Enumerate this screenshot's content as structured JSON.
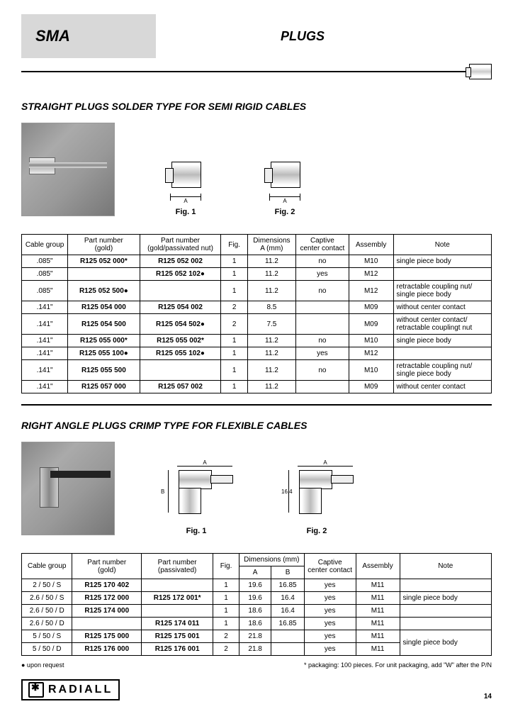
{
  "header": {
    "category": "SMA",
    "page_title": "PLUGS"
  },
  "section1": {
    "title": "STRAIGHT PLUGS SOLDER TYPE FOR SEMI RIGID CABLES",
    "fig1_label": "Fig. 1",
    "fig2_label": "Fig. 2",
    "dim_a": "A",
    "headers": {
      "cable_group": "Cable group",
      "pn_gold": "Part number\n(gold)",
      "pn_passivated": "Part number\n(gold/passivated nut)",
      "fig": "Fig.",
      "dim_a": "Dimensions\nA (mm)",
      "captive": "Captive\ncenter contact",
      "assembly": "Assembly",
      "note": "Note"
    },
    "rows": [
      {
        "cg": ".085\"",
        "pn1": "R125 052 000*",
        "pn2": "R125 052 002",
        "fig": "1",
        "a": "11.2",
        "cap": "no",
        "asm": "M10",
        "note": "single piece body"
      },
      {
        "cg": ".085\"",
        "pn1": "",
        "pn2": "R125 052 102●",
        "fig": "1",
        "a": "11.2",
        "cap": "yes",
        "asm": "M12",
        "note": ""
      },
      {
        "cg": ".085\"",
        "pn1": "R125 052 500●",
        "pn2": "",
        "fig": "1",
        "a": "11.2",
        "cap": "no",
        "asm": "M12",
        "note": "retractable coupling nut/\nsingle piece body"
      },
      {
        "cg": ".141\"",
        "pn1": "R125 054 000",
        "pn2": "R125 054 002",
        "fig": "2",
        "a": "8.5",
        "cap": "",
        "asm": "M09",
        "note": "without center contact"
      },
      {
        "cg": ".141\"",
        "pn1": "R125 054 500",
        "pn2": "R125 054 502●",
        "fig": "2",
        "a": "7.5",
        "cap": "",
        "asm": "M09",
        "note": "without center contact/\nretractable couplingt nut"
      },
      {
        "cg": ".141\"",
        "pn1": "R125 055 000*",
        "pn2": "R125 055 002*",
        "fig": "1",
        "a": "11.2",
        "cap": "no",
        "asm": "M10",
        "note": "single piece body"
      },
      {
        "cg": ".141\"",
        "pn1": "R125 055 100●",
        "pn2": "R125 055 102●",
        "fig": "1",
        "a": "11.2",
        "cap": "yes",
        "asm": "M12",
        "note": ""
      },
      {
        "cg": ".141\"",
        "pn1": "R125 055 500",
        "pn2": "",
        "fig": "1",
        "a": "11.2",
        "cap": "no",
        "asm": "M10",
        "note": "retractable coupling nut/\nsingle piece body"
      },
      {
        "cg": ".141\"",
        "pn1": "R125 057 000",
        "pn2": "R125 057 002",
        "fig": "1",
        "a": "11.2",
        "cap": "",
        "asm": "M09",
        "note": "without center contact"
      }
    ]
  },
  "section2": {
    "title": "RIGHT ANGLE PLUGS CRIMP TYPE FOR FLEXIBLE CABLES",
    "fig1_label": "Fig. 1",
    "fig2_label": "Fig. 2",
    "dim_a": "A",
    "dim_b": "B",
    "dim_164": "16.4",
    "headers": {
      "cable_group": "Cable group",
      "pn_gold": "Part number\n(gold)",
      "pn_passivated": "Part number\n(passivated)",
      "fig": "Fig.",
      "dims": "Dimensions (mm)",
      "dim_a": "A",
      "dim_b": "B",
      "captive": "Captive\ncenter contact",
      "assembly": "Assembly",
      "note": "Note"
    },
    "rows": [
      {
        "cg": "2 / 50 / S",
        "pn1": "R125 170 402",
        "pn2": "",
        "fig": "1",
        "a": "19.6",
        "b": "16.85",
        "cap": "yes",
        "asm": "M11",
        "note": ""
      },
      {
        "cg": "2.6 / 50 / S",
        "pn1": "R125 172 000",
        "pn2": "R125 172 001*",
        "fig": "1",
        "a": "19.6",
        "b": "16.4",
        "cap": "yes",
        "asm": "M11",
        "note": "single piece body"
      },
      {
        "cg": "2.6 / 50 / D",
        "pn1": "R125 174 000",
        "pn2": "",
        "fig": "1",
        "a": "18.6",
        "b": "16.4",
        "cap": "yes",
        "asm": "M11",
        "note": ""
      },
      {
        "cg": "2.6 / 50 / D",
        "pn1": "",
        "pn2": "R125 174 011",
        "fig": "1",
        "a": "18.6",
        "b": "16.85",
        "cap": "yes",
        "asm": "M11",
        "note": ""
      },
      {
        "cg": "5 / 50 / S",
        "pn1": "R125 175 000",
        "pn2": "R125 175 001",
        "fig": "2",
        "a": "21.8",
        "b": "",
        "cap": "yes",
        "asm": "M11",
        "note": "single piece body",
        "rowspan_note": true
      },
      {
        "cg": "5 / 50 / D",
        "pn1": "R125 176 000",
        "pn2": "R125 176 001",
        "fig": "2",
        "a": "21.8",
        "b": "",
        "cap": "yes",
        "asm": "M11"
      }
    ]
  },
  "footer": {
    "note_left": "● upon request",
    "note_right": "*  packaging: 100 pieces. For unit packaging, add \"W\" after the P/N",
    "logo_text": "RADIALL",
    "page_number": "14"
  }
}
